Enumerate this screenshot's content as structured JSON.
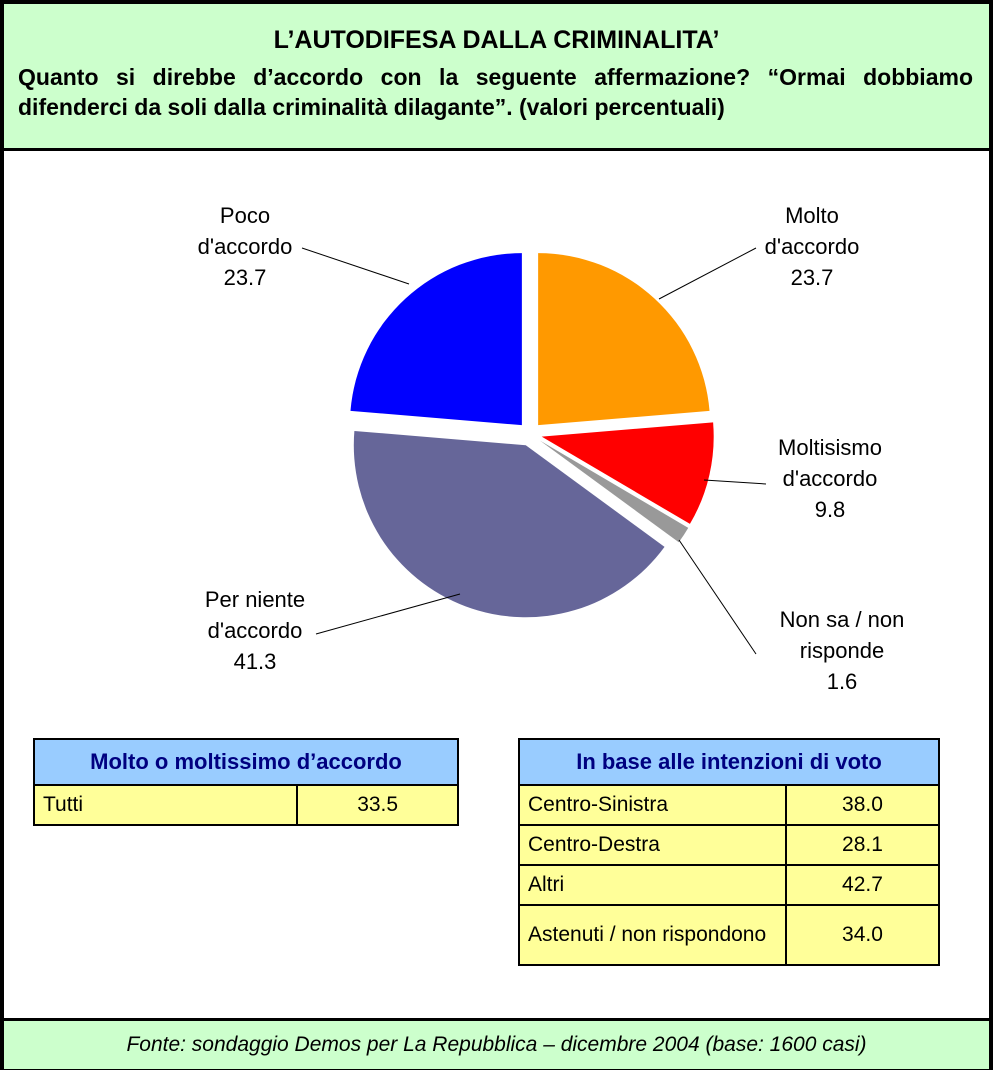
{
  "chart_data": {
    "type": "pie",
    "title": "L’AUTODIFESA DALLA CRIMINALITA’",
    "subtitle": "Quanto si direbbe d’accordo con la seguente affermazione? “Ormai dobbiamo difenderci da soli dalla criminalità dilagante”. (valori percentuali)",
    "categories": [
      "Molto d'accordo",
      "Moltisismo d'accordo",
      "Non sa / non risponde",
      "Per niente d'accordo",
      "Poco d'accordo"
    ],
    "values": [
      23.7,
      9.8,
      1.6,
      41.3,
      23.7
    ],
    "colors": [
      "#ff9900",
      "#ff0000",
      "#999999",
      "#666699",
      "#0000ff"
    ]
  },
  "tables": [
    {
      "header": "Molto o moltissimo d’accordo",
      "rows": [
        [
          "Tutti",
          "33.5"
        ]
      ]
    },
    {
      "header": "In base alle intenzioni di voto",
      "rows": [
        [
          "Centro-Sinistra",
          "38.0"
        ],
        [
          "Centro-Destra",
          "28.1"
        ],
        [
          "Altri",
          "42.7"
        ],
        [
          "Astenuti / non rispondono",
          "34.0"
        ]
      ]
    }
  ],
  "source": "Fonte: sondaggio Demos per La Repubblica – dicembre 2004 (base: 1600 casi)"
}
